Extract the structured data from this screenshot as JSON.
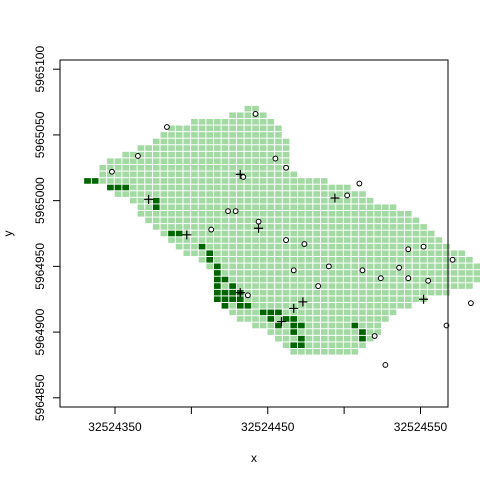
{
  "chart_data": {
    "type": "scatter",
    "title": "",
    "xlabel": "x",
    "ylabel": "y",
    "xlim": [
      32524314,
      32524568
    ],
    "ylim": [
      5964843,
      5965107
    ],
    "x_ticks": [
      32524350,
      32524450,
      32524550
    ],
    "x_tick_labels": [
      "32524350",
      "32524450",
      "32524550"
    ],
    "y_ticks": [
      5964850,
      5964900,
      5964950,
      5965000,
      5965050,
      5965100
    ],
    "y_tick_labels": [
      "5964850",
      "5964900",
      "5964950",
      "5965000",
      "5965050",
      "5965100"
    ],
    "grid": false,
    "legend": "none",
    "cell_size": 5,
    "colors": {
      "cells_light": "#a3d9a3",
      "cells_dark": "#006400",
      "points": "#000000",
      "axis": "#000000"
    },
    "region_rows": [
      {
        "y": 5965070,
        "x_from": 32524437,
        "x_to": 32524442
      },
      {
        "y": 5965065,
        "x_from": 32524427,
        "x_to": 32524447
      },
      {
        "y": 5965060,
        "x_from": 32524402,
        "x_to": 32524452
      },
      {
        "y": 5965055,
        "x_from": 32524387,
        "x_to": 32524457
      },
      {
        "y": 5965050,
        "x_from": 32524382,
        "x_to": 32524457
      },
      {
        "y": 5965045,
        "x_from": 32524377,
        "x_to": 32524462
      },
      {
        "y": 5965040,
        "x_from": 32524367,
        "x_to": 32524462
      },
      {
        "y": 5965035,
        "x_from": 32524357,
        "x_to": 32524462
      },
      {
        "y": 5965030,
        "x_from": 32524347,
        "x_to": 32524462
      },
      {
        "y": 5965025,
        "x_from": 32524342,
        "x_to": 32524462
      },
      {
        "y": 5965020,
        "x_from": 32524342,
        "x_to": 32524467
      },
      {
        "y": 5965015,
        "x_from": 32524332,
        "x_to": 32524487
      },
      {
        "y": 5965010,
        "x_from": 32524352,
        "x_to": 32524502
      },
      {
        "y": 5965005,
        "x_from": 32524352,
        "x_to": 32524512
      },
      {
        "y": 5965000,
        "x_from": 32524362,
        "x_to": 32524517
      },
      {
        "y": 5964995,
        "x_from": 32524367,
        "x_to": 32524532
      },
      {
        "y": 5964990,
        "x_from": 32524367,
        "x_to": 32524542
      },
      {
        "y": 5964985,
        "x_from": 32524372,
        "x_to": 32524547
      },
      {
        "y": 5964980,
        "x_from": 32524377,
        "x_to": 32524552
      },
      {
        "y": 5964975,
        "x_from": 32524382,
        "x_to": 32524557
      },
      {
        "y": 5964970,
        "x_from": 32524387,
        "x_to": 32524562
      },
      {
        "y": 5964965,
        "x_from": 32524392,
        "x_to": 32524567
      },
      {
        "y": 5964960,
        "x_from": 32524397,
        "x_to": 32524577
      },
      {
        "y": 5964955,
        "x_from": 32524407,
        "x_to": 32524582
      },
      {
        "y": 5964950,
        "x_from": 32524412,
        "x_to": 32524587
      },
      {
        "y": 5964945,
        "x_from": 32524417,
        "x_to": 32524592
      },
      {
        "y": 5964940,
        "x_from": 32524417,
        "x_to": 32524592
      },
      {
        "y": 5964935,
        "x_from": 32524417,
        "x_to": 32524582
      },
      {
        "y": 5964930,
        "x_from": 32524417,
        "x_to": 32524567
      },
      {
        "y": 5964925,
        "x_from": 32524417,
        "x_to": 32524552
      },
      {
        "y": 5964920,
        "x_from": 32524422,
        "x_to": 32524542
      },
      {
        "y": 5964915,
        "x_from": 32524427,
        "x_to": 32524532
      },
      {
        "y": 5964910,
        "x_from": 32524432,
        "x_to": 32524527
      },
      {
        "y": 5964905,
        "x_from": 32524442,
        "x_to": 32524522
      },
      {
        "y": 5964900,
        "x_from": 32524452,
        "x_to": 32524522
      },
      {
        "y": 5964895,
        "x_from": 32524457,
        "x_to": 32524517
      },
      {
        "y": 5964890,
        "x_from": 32524462,
        "x_to": 32524512
      },
      {
        "y": 5964885,
        "x_from": 32524467,
        "x_to": 32524507
      }
    ],
    "dark_cells": [
      [
        32524332,
        5965015
      ],
      [
        32524337,
        5965015
      ],
      [
        32524347,
        5965010
      ],
      [
        32524352,
        5965010
      ],
      [
        32524357,
        5965010
      ],
      [
        32524377,
        5965000
      ],
      [
        32524377,
        5964995
      ],
      [
        32524387,
        5964975
      ],
      [
        32524392,
        5964975
      ],
      [
        32524407,
        5964965
      ],
      [
        32524412,
        5964960
      ],
      [
        32524412,
        5964955
      ],
      [
        32524417,
        5964950
      ],
      [
        32524417,
        5964945
      ],
      [
        32524417,
        5964940
      ],
      [
        32524422,
        5964940
      ],
      [
        32524417,
        5964935
      ],
      [
        32524427,
        5964935
      ],
      [
        32524417,
        5964930
      ],
      [
        32524422,
        5964930
      ],
      [
        32524427,
        5964930
      ],
      [
        32524432,
        5964930
      ],
      [
        32524417,
        5964925
      ],
      [
        32524422,
        5964925
      ],
      [
        32524427,
        5964925
      ],
      [
        32524432,
        5964925
      ],
      [
        32524422,
        5964920
      ],
      [
        32524432,
        5964920
      ],
      [
        32524437,
        5964920
      ],
      [
        32524447,
        5964915
      ],
      [
        32524452,
        5964915
      ],
      [
        32524457,
        5964915
      ],
      [
        32524452,
        5964910
      ],
      [
        32524462,
        5964910
      ],
      [
        32524467,
        5964910
      ],
      [
        32524457,
        5964905
      ],
      [
        32524467,
        5964905
      ],
      [
        32524472,
        5964905
      ],
      [
        32524467,
        5964900
      ],
      [
        32524472,
        5964895
      ],
      [
        32524467,
        5964890
      ],
      [
        32524472,
        5964890
      ],
      [
        32524507,
        5964905
      ],
      [
        32524512,
        5964900
      ],
      [
        32524512,
        5964895
      ]
    ],
    "series": [
      {
        "marker": "circle",
        "points": [
          [
            32524348,
            5965022
          ],
          [
            32524365,
            5965034
          ],
          [
            32524384,
            5965056
          ],
          [
            32524442,
            5965066
          ],
          [
            32524434,
            5965018
          ],
          [
            32524455,
            5965032
          ],
          [
            32524462,
            5965025
          ],
          [
            32524510,
            5965013
          ],
          [
            32524502,
            5965004
          ],
          [
            32524424,
            5964992
          ],
          [
            32524429,
            5964992
          ],
          [
            32524444,
            5964984
          ],
          [
            32524413,
            5964978
          ],
          [
            32524462,
            5964970
          ],
          [
            32524474,
            5964967
          ],
          [
            32524542,
            5964963
          ],
          [
            32524552,
            5964965
          ],
          [
            32524571,
            5964955
          ],
          [
            32524467,
            5964947
          ],
          [
            32524490,
            5964950
          ],
          [
            32524512,
            5964947
          ],
          [
            32524524,
            5964941
          ],
          [
            32524536,
            5964949
          ],
          [
            32524542,
            5964941
          ],
          [
            32524555,
            5964939
          ],
          [
            32524483,
            5964935
          ],
          [
            32524437,
            5964928
          ],
          [
            32524583,
            5964922
          ],
          [
            32524520,
            5964897
          ],
          [
            32524567,
            5964905
          ],
          [
            32524527,
            5964875
          ]
        ]
      },
      {
        "marker": "plus",
        "points": [
          [
            32524432,
            5965020
          ],
          [
            32524494,
            5965002
          ],
          [
            32524372,
            5965001
          ],
          [
            32524397,
            5964974
          ],
          [
            32524444,
            5964979
          ],
          [
            32524432,
            5964930
          ],
          [
            32524473,
            5964923
          ],
          [
            32524467,
            5964918
          ],
          [
            32524552,
            5964925
          ],
          [
            32524459,
            5964908
          ]
        ]
      }
    ]
  }
}
